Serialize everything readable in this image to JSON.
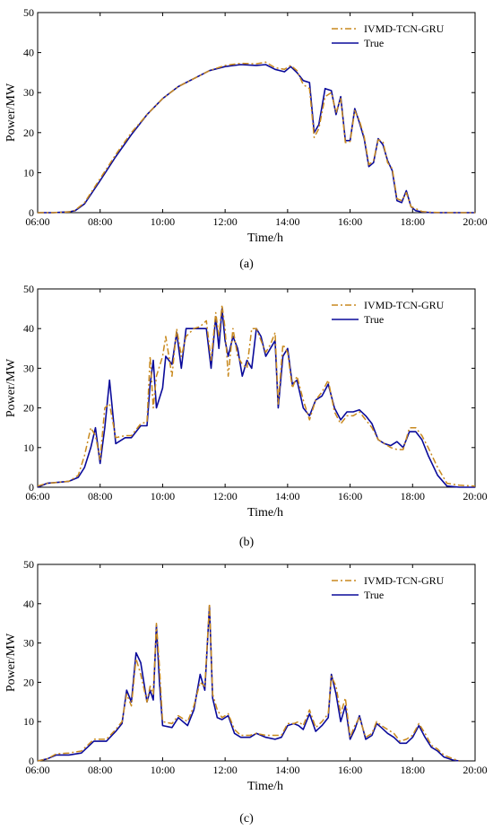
{
  "colors": {
    "predicted": "#C8891E",
    "true": "#0A0A9A",
    "axis": "#000000"
  },
  "panel_labels": [
    "(a)",
    "(b)",
    "(c)"
  ],
  "chart_data": [
    {
      "type": "line",
      "panel": "(a)",
      "xlabel": "Time/h",
      "ylabel": "Power/MW",
      "xlim": [
        6,
        20
      ],
      "ylim": [
        0,
        50
      ],
      "xticks": [
        "06:00",
        "08:00",
        "10:00",
        "12:00",
        "14:00",
        "16:00",
        "18:00",
        "20:00"
      ],
      "yticks": [
        0,
        10,
        20,
        30,
        40,
        50
      ],
      "legend_position": "top-right",
      "series": [
        {
          "name": "IVMD-TCN-GRU",
          "style": "dash-dot",
          "color": "#C8891E",
          "x": [
            6.0,
            6.5,
            7.0,
            7.2,
            7.5,
            8.0,
            8.5,
            9.0,
            9.5,
            10.0,
            10.5,
            11.0,
            11.5,
            12.0,
            12.5,
            13.0,
            13.3,
            13.6,
            13.9,
            14.1,
            14.3,
            14.5,
            14.7,
            14.85,
            15.0,
            15.2,
            15.4,
            15.55,
            15.7,
            15.85,
            16.0,
            16.15,
            16.3,
            16.45,
            16.6,
            16.75,
            16.9,
            17.05,
            17.2,
            17.35,
            17.5,
            17.65,
            17.8,
            17.95,
            18.1,
            18.3,
            18.6,
            19.0,
            20.0
          ],
          "y": [
            0,
            0,
            0.2,
            0.6,
            2.5,
            8.5,
            14.5,
            20,
            24.5,
            28.5,
            31.5,
            33.5,
            35.5,
            36.8,
            37.3,
            37.2,
            37.6,
            36.2,
            35.8,
            36.8,
            35.5,
            32.0,
            31.0,
            18.8,
            21.0,
            29.0,
            30.0,
            25.0,
            28.5,
            17.5,
            17.8,
            25.5,
            23.0,
            19.0,
            12.0,
            13.0,
            18.2,
            17.8,
            12.5,
            11.0,
            3.5,
            3.0,
            5.0,
            1.5,
            1.0,
            0.3,
            0.1,
            0,
            0
          ]
        },
        {
          "name": "True",
          "style": "solid",
          "color": "#0A0A9A",
          "x": [
            6.0,
            6.5,
            7.0,
            7.2,
            7.5,
            8.0,
            8.5,
            9.0,
            9.5,
            10.0,
            10.5,
            11.0,
            11.5,
            12.0,
            12.5,
            13.0,
            13.3,
            13.6,
            13.9,
            14.1,
            14.3,
            14.5,
            14.7,
            14.85,
            15.0,
            15.2,
            15.4,
            15.55,
            15.7,
            15.85,
            16.0,
            16.15,
            16.3,
            16.45,
            16.6,
            16.75,
            16.9,
            17.05,
            17.2,
            17.35,
            17.5,
            17.65,
            17.8,
            17.95,
            18.1,
            18.3,
            18.6,
            19.0,
            20.0
          ],
          "y": [
            0,
            0,
            0.2,
            0.5,
            2.2,
            8.0,
            14.0,
            19.5,
            24.5,
            28.5,
            31.5,
            33.5,
            35.5,
            36.5,
            37.0,
            36.8,
            37.0,
            35.8,
            35.2,
            36.5,
            35.0,
            33.0,
            32.5,
            20.0,
            22.0,
            31.0,
            30.5,
            24.5,
            29.0,
            18.0,
            18.0,
            26.0,
            22.5,
            18.5,
            11.5,
            12.5,
            18.5,
            17.0,
            13.0,
            10.5,
            3.0,
            2.5,
            5.5,
            1.5,
            0.5,
            0.2,
            0,
            0,
            0
          ]
        }
      ]
    },
    {
      "type": "line",
      "panel": "(b)",
      "xlabel": "Time/h",
      "ylabel": "Power/MW",
      "xlim": [
        6,
        20
      ],
      "ylim": [
        0,
        50
      ],
      "xticks": [
        "06:00",
        "08:00",
        "10:00",
        "12:00",
        "14:00",
        "16:00",
        "18:00",
        "20:00"
      ],
      "yticks": [
        0,
        10,
        20,
        30,
        40,
        50
      ],
      "legend_position": "top-right",
      "series": [
        {
          "name": "IVMD-TCN-GRU",
          "style": "dash-dot",
          "color": "#C8891E",
          "x": [
            6.0,
            6.3,
            6.6,
            7.0,
            7.3,
            7.5,
            7.7,
            7.85,
            8.0,
            8.15,
            8.3,
            8.5,
            8.8,
            9.0,
            9.3,
            9.5,
            9.6,
            9.7,
            9.8,
            10.0,
            10.1,
            10.3,
            10.45,
            10.6,
            10.75,
            11.0,
            11.2,
            11.4,
            11.55,
            11.7,
            11.8,
            11.9,
            12.0,
            12.1,
            12.25,
            12.4,
            12.55,
            12.7,
            12.85,
            13.0,
            13.15,
            13.3,
            13.45,
            13.6,
            13.7,
            13.85,
            14.0,
            14.15,
            14.3,
            14.5,
            14.7,
            14.9,
            15.1,
            15.3,
            15.5,
            15.7,
            15.9,
            16.1,
            16.3,
            16.5,
            16.7,
            16.9,
            17.1,
            17.3,
            17.5,
            17.7,
            17.9,
            18.1,
            18.3,
            18.5,
            18.8,
            19.1,
            19.5,
            20.0
          ],
          "y": [
            0.3,
            1.0,
            1.2,
            1.5,
            3.0,
            8.0,
            15.0,
            13.0,
            7.0,
            20.0,
            21.0,
            12.5,
            13.0,
            13.0,
            16.0,
            16.5,
            33.0,
            20.0,
            28.0,
            33.0,
            38.0,
            28.0,
            40.0,
            33.0,
            38.0,
            40.0,
            40.5,
            42.0,
            32.0,
            44.0,
            38.0,
            46.0,
            40.0,
            28.0,
            40.0,
            33.0,
            31.0,
            30.0,
            40.0,
            40.0,
            37.0,
            34.0,
            36.0,
            39.0,
            21.0,
            36.0,
            34.0,
            25.0,
            28.0,
            22.0,
            17.0,
            22.0,
            24.0,
            27.0,
            19.0,
            16.0,
            18.0,
            18.0,
            19.0,
            17.0,
            15.0,
            12.0,
            11.0,
            10.0,
            9.5,
            9.5,
            15.0,
            15.0,
            13.0,
            10.0,
            5.0,
            1.0,
            0.5,
            0.3
          ]
        },
        {
          "name": "True",
          "style": "solid",
          "color": "#0A0A9A",
          "x": [
            6.0,
            6.3,
            6.6,
            7.0,
            7.3,
            7.5,
            7.7,
            7.85,
            8.0,
            8.15,
            8.3,
            8.5,
            8.8,
            9.0,
            9.3,
            9.5,
            9.6,
            9.7,
            9.8,
            10.0,
            10.1,
            10.3,
            10.45,
            10.6,
            10.75,
            11.0,
            11.2,
            11.4,
            11.55,
            11.7,
            11.8,
            11.9,
            12.0,
            12.1,
            12.25,
            12.4,
            12.55,
            12.7,
            12.85,
            13.0,
            13.15,
            13.3,
            13.45,
            13.6,
            13.7,
            13.85,
            14.0,
            14.15,
            14.3,
            14.5,
            14.7,
            14.9,
            15.1,
            15.3,
            15.5,
            15.7,
            15.9,
            16.1,
            16.3,
            16.5,
            16.7,
            16.9,
            17.1,
            17.3,
            17.5,
            17.7,
            17.9,
            18.1,
            18.3,
            18.5,
            18.8,
            19.1,
            19.5,
            20.0
          ],
          "y": [
            0,
            1.0,
            1.2,
            1.5,
            2.5,
            5.0,
            10.0,
            15.0,
            6.0,
            15.0,
            27.0,
            11.0,
            12.5,
            12.5,
            15.5,
            15.5,
            26.0,
            32.0,
            20.0,
            25.0,
            33.0,
            31.0,
            39.0,
            30.0,
            40.0,
            40.0,
            40.0,
            40.0,
            30.0,
            43.0,
            35.0,
            45.0,
            37.0,
            33.0,
            38.0,
            35.0,
            28.0,
            32.0,
            30.0,
            40.0,
            38.0,
            33.0,
            35.0,
            37.0,
            20.0,
            33.0,
            35.0,
            26.0,
            27.0,
            20.0,
            18.0,
            22.0,
            23.0,
            26.0,
            20.0,
            17.0,
            19.0,
            19.0,
            19.5,
            18.0,
            16.0,
            12.0,
            11.0,
            10.5,
            11.5,
            10.0,
            14.0,
            14.0,
            12.0,
            8.0,
            3.0,
            0.3,
            0,
            0
          ]
        }
      ]
    },
    {
      "type": "line",
      "panel": "(c)",
      "xlabel": "Time/h",
      "ylabel": "Power/MW",
      "xlim": [
        6,
        20
      ],
      "ylim": [
        0,
        50
      ],
      "xticks": [
        "06:00",
        "08:00",
        "10:00",
        "12:00",
        "14:00",
        "16:00",
        "18:00",
        "20:00"
      ],
      "yticks": [
        0,
        10,
        20,
        30,
        40,
        50
      ],
      "legend_position": "top-right",
      "series": [
        {
          "name": "IVMD-TCN-GRU",
          "style": "dash-dot",
          "color": "#C8891E",
          "x": [
            6.0,
            6.3,
            6.6,
            7.0,
            7.4,
            7.8,
            8.2,
            8.5,
            8.7,
            8.85,
            9.0,
            9.15,
            9.3,
            9.5,
            9.6,
            9.7,
            9.8,
            9.9,
            10.0,
            10.3,
            10.5,
            10.8,
            11.0,
            11.2,
            11.35,
            11.5,
            11.6,
            11.75,
            11.9,
            12.1,
            12.3,
            12.5,
            12.8,
            13.0,
            13.3,
            13.6,
            13.8,
            14.0,
            14.2,
            14.35,
            14.5,
            14.7,
            14.9,
            15.1,
            15.3,
            15.4,
            15.55,
            15.7,
            15.85,
            16.0,
            16.15,
            16.3,
            16.5,
            16.7,
            16.85,
            17.0,
            17.2,
            17.4,
            17.6,
            17.8,
            18.0,
            18.2,
            18.4,
            18.6,
            18.8,
            19.0,
            19.3,
            19.5
          ],
          "y": [
            0,
            0.5,
            1.8,
            2.0,
            2.5,
            5.5,
            5.5,
            8.0,
            10.0,
            17.0,
            14.0,
            26.0,
            22.0,
            15.0,
            19.0,
            17.0,
            35.0,
            24.0,
            10.0,
            9.5,
            11.5,
            10.0,
            14.0,
            20.0,
            19.0,
            40.0,
            17.0,
            13.0,
            11.0,
            12.0,
            8.0,
            6.5,
            6.5,
            7.0,
            6.5,
            6.5,
            6.5,
            9.5,
            9.5,
            10.0,
            9.0,
            13.0,
            8.5,
            10.0,
            12.0,
            21.5,
            19.0,
            12.0,
            16.0,
            6.0,
            9.0,
            11.0,
            6.0,
            7.0,
            10.0,
            9.0,
            8.0,
            7.0,
            5.0,
            5.5,
            6.5,
            9.5,
            7.0,
            4.0,
            3.0,
            1.5,
            0.5,
            0
          ]
        },
        {
          "name": "True",
          "style": "solid",
          "color": "#0A0A9A",
          "x": [
            6.0,
            6.3,
            6.6,
            7.0,
            7.4,
            7.8,
            8.2,
            8.5,
            8.7,
            8.85,
            9.0,
            9.15,
            9.3,
            9.5,
            9.6,
            9.7,
            9.8,
            9.9,
            10.0,
            10.3,
            10.5,
            10.8,
            11.0,
            11.2,
            11.35,
            11.5,
            11.6,
            11.75,
            11.9,
            12.1,
            12.3,
            12.5,
            12.8,
            13.0,
            13.3,
            13.6,
            13.8,
            14.0,
            14.2,
            14.35,
            14.5,
            14.7,
            14.9,
            15.1,
            15.3,
            15.4,
            15.55,
            15.7,
            15.85,
            16.0,
            16.15,
            16.3,
            16.5,
            16.7,
            16.85,
            17.0,
            17.2,
            17.4,
            17.6,
            17.8,
            18.0,
            18.2,
            18.4,
            18.6,
            18.8,
            19.0,
            19.3,
            19.5
          ],
          "y": [
            0,
            0.5,
            1.5,
            1.5,
            2.0,
            5.0,
            5.0,
            7.5,
            9.5,
            18.0,
            15.0,
            27.5,
            25.0,
            15.0,
            18.0,
            15.5,
            34.5,
            20.0,
            9.0,
            8.5,
            11.0,
            9.0,
            13.0,
            22.0,
            18.0,
            39.5,
            16.0,
            11.0,
            10.5,
            11.5,
            7.0,
            6.0,
            6.0,
            7.0,
            6.0,
            5.5,
            6.0,
            9.0,
            9.5,
            9.0,
            8.0,
            12.0,
            7.5,
            9.0,
            11.0,
            22.0,
            17.0,
            10.0,
            14.0,
            5.5,
            8.0,
            11.5,
            5.5,
            6.5,
            9.5,
            8.5,
            7.0,
            6.0,
            4.5,
            4.5,
            6.0,
            9.0,
            6.0,
            3.5,
            2.5,
            1.0,
            0.2,
            0
          ]
        }
      ]
    }
  ]
}
